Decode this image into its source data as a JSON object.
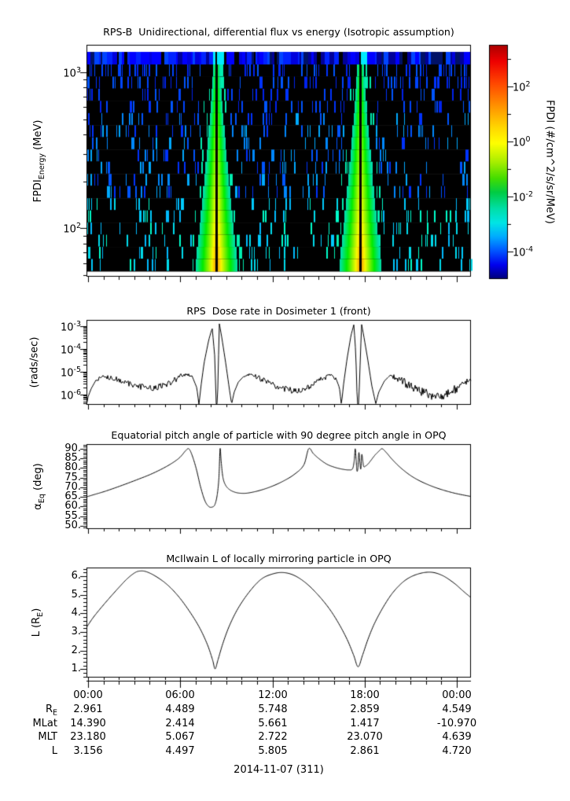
{
  "colors": {
    "background": "#ffffff",
    "frame": "#000000",
    "curve": "#000000",
    "spectrogram_blue_band": [
      "#0000dd",
      "#0022ff",
      "#0044ff",
      "#000099",
      "#0000ff",
      "#001166"
    ],
    "spectrogram_dash_high": [
      "#0033ff",
      "#0044ff",
      "#0022ee",
      "#0055ff"
    ],
    "spectrogram_dash_mid": [
      "#0055ff",
      "#0088ff",
      "#00aaff",
      "#0033ff"
    ],
    "spectrogram_dash_low": [
      "#00bbff",
      "#00ccff",
      "#00ddee",
      "#00ffcc"
    ],
    "enhancement_edge": "#00eeb0",
    "colorbar_stops": [
      [
        0.0,
        "#aa0000"
      ],
      [
        0.07,
        "#ee0000"
      ],
      [
        0.16,
        "#ff4400"
      ],
      [
        0.27,
        "#ff9900"
      ],
      [
        0.35,
        "#ffd500"
      ],
      [
        0.42,
        "#ffff00"
      ],
      [
        0.5,
        "#a8ee00"
      ],
      [
        0.57,
        "#44dd00"
      ],
      [
        0.63,
        "#00cc44"
      ],
      [
        0.7,
        "#00dfa8"
      ],
      [
        0.76,
        "#00e5e5"
      ],
      [
        0.82,
        "#00aaff"
      ],
      [
        0.88,
        "#0055ff"
      ],
      [
        0.94,
        "#0000ee"
      ],
      [
        1.0,
        "#000077"
      ]
    ]
  },
  "chart_data": [
    {
      "id": "flux_spectrogram",
      "type": "heatmap",
      "title": "RPS-B  Unidirectional, differential flux vs energy (Isotropic assumption)",
      "ylabel": {
        "pre": "FPDI",
        "sub": "Energy",
        "post": " (MeV)"
      },
      "yscale": "log",
      "yrange_mev": [
        49,
        1500
      ],
      "yticks": [
        {
          "m": "10",
          "e": "3",
          "value": 1000
        },
        {
          "m": "10",
          "e": "2",
          "value": 100
        }
      ],
      "x_hours_total": 25,
      "xticks_major_hours": [
        0,
        6,
        12,
        18,
        24
      ],
      "perigee_enhancements": [
        {
          "x_frac": 0.337
        },
        {
          "x_frac": 0.712
        }
      ],
      "colorbar": {
        "label": "FPDI (#/cm^2/s/sr/MeV)",
        "ticks": [
          {
            "m": "10",
            "e": "2",
            "frac": 0.178
          },
          {
            "m": "10",
            "e": "0",
            "frac": 0.413
          },
          {
            "m": "10",
            "e": "-2",
            "frac": 0.648
          },
          {
            "m": "10",
            "e": "-4",
            "frac": 0.883
          }
        ],
        "minor_fracs": [
          0.06,
          0.295,
          0.53,
          0.765
        ]
      }
    },
    {
      "id": "dose_rate",
      "type": "line",
      "title": "RPS  Dose rate in Dosimeter 1 (front)",
      "ylabel": {
        "pre": "(rads/sec)",
        "sub": "",
        "post": ""
      },
      "yscale": "log",
      "ylim_log": [
        -6.45,
        -2.72
      ],
      "yticks": [
        {
          "m": "10",
          "e": "-3",
          "log": -3
        },
        {
          "m": "10",
          "e": "-4",
          "log": -4
        },
        {
          "m": "10",
          "e": "-5",
          "log": -5
        },
        {
          "m": "10",
          "e": "-6",
          "log": -6
        }
      ],
      "points_xfrac_log10": [
        [
          0,
          -6.5
        ],
        [
          0.004,
          -6.1
        ],
        [
          0.012,
          -5.75
        ],
        [
          0.025,
          -5.35
        ],
        [
          0.04,
          -5.18
        ],
        [
          0.06,
          -5.22
        ],
        [
          0.09,
          -5.4
        ],
        [
          0.12,
          -5.58
        ],
        [
          0.15,
          -5.68
        ],
        [
          0.18,
          -5.7
        ],
        [
          0.21,
          -5.55
        ],
        [
          0.24,
          -5.25
        ],
        [
          0.262,
          -5.1
        ],
        [
          0.275,
          -5.2
        ],
        [
          0.287,
          -5.7
        ],
        [
          0.2925,
          -6.45
        ],
        [
          0.298,
          -5.6
        ],
        [
          0.306,
          -4.6
        ],
        [
          0.318,
          -3.6
        ],
        [
          0.327,
          -3.07
        ],
        [
          0.3335,
          -4.3
        ],
        [
          0.3375,
          -6.45
        ],
        [
          0.3405,
          -6.45
        ],
        [
          0.3455,
          -2.88
        ],
        [
          0.352,
          -3.5
        ],
        [
          0.362,
          -4.6
        ],
        [
          0.372,
          -5.8
        ],
        [
          0.3775,
          -6.42
        ],
        [
          0.384,
          -5.9
        ],
        [
          0.395,
          -5.45
        ],
        [
          0.41,
          -5.18
        ],
        [
          0.425,
          -5.12
        ],
        [
          0.45,
          -5.3
        ],
        [
          0.48,
          -5.55
        ],
        [
          0.51,
          -5.72
        ],
        [
          0.535,
          -5.82
        ],
        [
          0.56,
          -5.78
        ],
        [
          0.59,
          -5.55
        ],
        [
          0.615,
          -5.3
        ],
        [
          0.633,
          -5.12
        ],
        [
          0.648,
          -5.25
        ],
        [
          0.658,
          -5.7
        ],
        [
          0.663,
          -6.45
        ],
        [
          0.669,
          -5.5
        ],
        [
          0.678,
          -4.4
        ],
        [
          0.688,
          -3.4
        ],
        [
          0.6955,
          -2.92
        ],
        [
          0.7005,
          -4.2
        ],
        [
          0.7045,
          -6.45
        ],
        [
          0.708,
          -6.45
        ],
        [
          0.7155,
          -2.9
        ],
        [
          0.722,
          -3.5
        ],
        [
          0.732,
          -4.5
        ],
        [
          0.742,
          -5.6
        ],
        [
          0.7525,
          -6.4
        ],
        [
          0.76,
          -5.9
        ],
        [
          0.775,
          -5.4
        ],
        [
          0.79,
          -5.15
        ],
        [
          0.81,
          -5.3
        ],
        [
          0.84,
          -5.6
        ],
        [
          0.87,
          -5.85
        ],
        [
          0.9,
          -6.05
        ],
        [
          0.925,
          -6.1
        ],
        [
          0.95,
          -5.85
        ],
        [
          0.975,
          -5.6
        ],
        [
          1,
          -5.38
        ]
      ]
    },
    {
      "id": "pitch_angle",
      "type": "line",
      "title": "Equatorial pitch angle of particle with 90 degree pitch angle in OPQ",
      "ylabel": {
        "pre": "α",
        "sub": "Eq",
        "post": " (deg)"
      },
      "ylim": [
        48.3,
        92.4
      ],
      "yticks": [
        {
          "label": "90.",
          "value": 90
        },
        {
          "label": "85.",
          "value": 85
        },
        {
          "label": "80.",
          "value": 80
        },
        {
          "label": "75.",
          "value": 75
        },
        {
          "label": "70.",
          "value": 70
        },
        {
          "label": "65.",
          "value": 65
        },
        {
          "label": "60.",
          "value": 60
        },
        {
          "label": "55.",
          "value": 55
        },
        {
          "label": "50.",
          "value": 50
        }
      ],
      "points_xfrac_deg": [
        [
          0,
          65
        ],
        [
          0.02,
          66.2
        ],
        [
          0.05,
          68
        ],
        [
          0.09,
          70.8
        ],
        [
          0.13,
          73.8
        ],
        [
          0.17,
          77
        ],
        [
          0.21,
          81
        ],
        [
          0.24,
          85
        ],
        [
          0.258,
          89
        ],
        [
          0.266,
          90
        ],
        [
          0.274,
          87
        ],
        [
          0.285,
          80
        ],
        [
          0.297,
          70
        ],
        [
          0.308,
          63
        ],
        [
          0.318,
          60
        ],
        [
          0.327,
          59.7
        ],
        [
          0.334,
          61
        ],
        [
          0.34,
          66
        ],
        [
          0.3445,
          75
        ],
        [
          0.3475,
          90
        ],
        [
          0.3505,
          83
        ],
        [
          0.355,
          75
        ],
        [
          0.362,
          71
        ],
        [
          0.372,
          68.8
        ],
        [
          0.385,
          67.5
        ],
        [
          0.4,
          66.9
        ],
        [
          0.42,
          67
        ],
        [
          0.45,
          68.3
        ],
        [
          0.48,
          70.3
        ],
        [
          0.51,
          73
        ],
        [
          0.54,
          76.6
        ],
        [
          0.565,
          81.5
        ],
        [
          0.578,
          90
        ],
        [
          0.59,
          87.5
        ],
        [
          0.605,
          84.8
        ],
        [
          0.625,
          82
        ],
        [
          0.645,
          80.4
        ],
        [
          0.665,
          79.4
        ],
        [
          0.682,
          79
        ],
        [
          0.692,
          79.6
        ],
        [
          0.6965,
          84
        ],
        [
          0.699,
          90
        ],
        [
          0.7015,
          84
        ],
        [
          0.7035,
          78.5
        ],
        [
          0.706,
          80
        ],
        [
          0.7085,
          88
        ],
        [
          0.711,
          83
        ],
        [
          0.7135,
          79.5
        ],
        [
          0.716,
          87
        ],
        [
          0.7185,
          84
        ],
        [
          0.721,
          80.8
        ],
        [
          0.725,
          80.9
        ],
        [
          0.732,
          82
        ],
        [
          0.74,
          84
        ],
        [
          0.75,
          86.6
        ],
        [
          0.76,
          88.6
        ],
        [
          0.769,
          90
        ],
        [
          0.78,
          88
        ],
        [
          0.795,
          84.5
        ],
        [
          0.815,
          80.5
        ],
        [
          0.84,
          76.5
        ],
        [
          0.865,
          73.5
        ],
        [
          0.895,
          70.8
        ],
        [
          0.925,
          68.7
        ],
        [
          0.96,
          66.8
        ],
        [
          1,
          65.2
        ]
      ]
    },
    {
      "id": "mcilwain_l",
      "type": "line",
      "title": "McIlwain L of locally mirroring particle in OPQ",
      "ylabel": {
        "pre": "L (R",
        "sub": "E",
        "post": ")"
      },
      "ylim": [
        0.55,
        6.47
      ],
      "yticks": [
        {
          "label": "6.",
          "value": 6
        },
        {
          "label": "5.",
          "value": 5
        },
        {
          "label": "4.",
          "value": 4
        },
        {
          "label": "3.",
          "value": 3
        },
        {
          "label": "2.",
          "value": 2
        },
        {
          "label": "1.",
          "value": 1
        }
      ],
      "points_xfrac_l": [
        [
          0,
          3.25
        ],
        [
          0.02,
          3.85
        ],
        [
          0.05,
          4.6
        ],
        [
          0.08,
          5.3
        ],
        [
          0.105,
          5.85
        ],
        [
          0.125,
          6.18
        ],
        [
          0.138,
          6.28
        ],
        [
          0.155,
          6.25
        ],
        [
          0.18,
          6
        ],
        [
          0.21,
          5.55
        ],
        [
          0.24,
          4.9
        ],
        [
          0.27,
          4.05
        ],
        [
          0.295,
          3.2
        ],
        [
          0.315,
          2.3
        ],
        [
          0.328,
          1.5
        ],
        [
          0.3345,
          1.02
        ],
        [
          0.342,
          1.5
        ],
        [
          0.355,
          2.4
        ],
        [
          0.372,
          3.35
        ],
        [
          0.395,
          4.3
        ],
        [
          0.425,
          5.2
        ],
        [
          0.455,
          5.85
        ],
        [
          0.485,
          6.13
        ],
        [
          0.512,
          6.2
        ],
        [
          0.54,
          6.05
        ],
        [
          0.57,
          5.65
        ],
        [
          0.6,
          5.05
        ],
        [
          0.63,
          4.3
        ],
        [
          0.655,
          3.5
        ],
        [
          0.678,
          2.6
        ],
        [
          0.695,
          1.75
        ],
        [
          0.7065,
          1.13
        ],
        [
          0.718,
          1.75
        ],
        [
          0.732,
          2.6
        ],
        [
          0.75,
          3.5
        ],
        [
          0.775,
          4.45
        ],
        [
          0.8,
          5.2
        ],
        [
          0.83,
          5.8
        ],
        [
          0.862,
          6.12
        ],
        [
          0.895,
          6.22
        ],
        [
          0.925,
          6.05
        ],
        [
          0.955,
          5.65
        ],
        [
          0.98,
          5.2
        ],
        [
          1,
          4.85
        ]
      ]
    }
  ],
  "time_axis": {
    "labels": [
      "00:00",
      "06:00",
      "12:00",
      "18:00",
      "00:00"
    ],
    "major_hours": [
      0,
      6,
      12,
      18,
      24
    ],
    "total_hours": 25
  },
  "ephemeris_table": {
    "rows": [
      {
        "label": {
          "pre": "R",
          "sub": "E",
          "post": ""
        },
        "values": [
          "2.961",
          "4.489",
          "5.748",
          "2.859",
          "4.549"
        ]
      },
      {
        "label": {
          "pre": "MLat",
          "sub": "",
          "post": ""
        },
        "values": [
          "14.390",
          "2.414",
          "5.661",
          "1.417",
          "-10.970"
        ]
      },
      {
        "label": {
          "pre": "MLT",
          "sub": "",
          "post": ""
        },
        "values": [
          "23.180",
          "5.067",
          "2.722",
          "23.070",
          "4.639"
        ]
      },
      {
        "label": {
          "pre": "L",
          "sub": "",
          "post": ""
        },
        "values": [
          "3.156",
          "4.497",
          "5.805",
          "2.861",
          "4.720"
        ]
      }
    ],
    "date_label": "2014-11-07 (311)"
  }
}
